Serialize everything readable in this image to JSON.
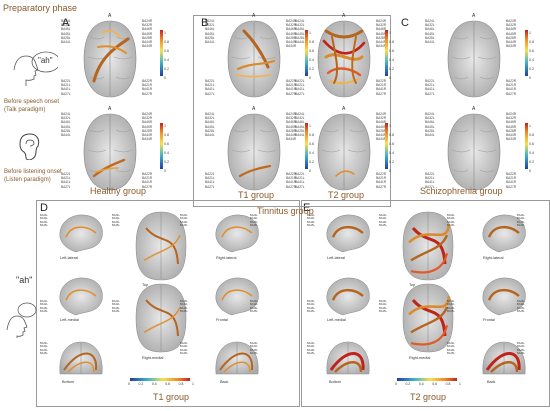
{
  "figure": {
    "header": "Preparatory phase",
    "panels": {
      "A": {
        "letter": "A",
        "group_title": "Healthy group"
      },
      "B": {
        "letter": "B",
        "group_title": "Tinnitus group",
        "subgroups": [
          "T1 group",
          "T2 group"
        ]
      },
      "C": {
        "letter": "C",
        "group_title": "Schizophrenia group"
      },
      "D": {
        "letter": "D",
        "group_title": "T1 group"
      },
      "E": {
        "letter": "E",
        "group_title": "T2 group"
      }
    },
    "conditions": {
      "speech": {
        "bubble": "\"ah\"",
        "line1": "Before speech onset",
        "line2": "(Talk paradigm)"
      },
      "listen": {
        "line1": "Before listening onset",
        "line2": "(Listen paradigm)"
      }
    },
    "labels_left": [
      "BA24L",
      "BA32L",
      "BA46L",
      "BA45L",
      "BA28L",
      "BA44L"
    ],
    "labels_left_bottom": [
      "BA22L",
      "BA21L",
      "BA41L",
      "BA27L"
    ],
    "labels_right": [
      "BA24R",
      "BA32R",
      "BA46R",
      "BA45R",
      "BA28R",
      "BA44R",
      "BA34R"
    ],
    "labels_right_bottom": [
      "BA22R",
      "BA21R",
      "BA41R",
      "BA27R"
    ],
    "colorbar_ticks": [
      "1",
      "0.8",
      "0.6",
      "0.4",
      "0.2",
      "0"
    ],
    "view_labels": [
      "Left-lateral",
      "Top",
      "Right-lateral",
      "Left-medial",
      "Right-medial",
      "Frontal",
      "Bottom",
      "Back"
    ],
    "brain_marker": "A",
    "colors": {
      "caption": "#8a5a2b",
      "connection_dark": "#a0521a",
      "connection_mid": "#d98b2f",
      "connection_light": "#f2c46b",
      "brain": "#bdbdbd"
    }
  }
}
